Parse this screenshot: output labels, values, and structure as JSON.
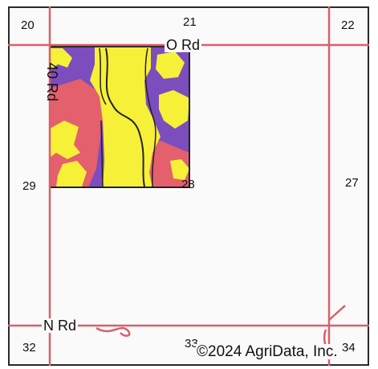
{
  "map": {
    "section_numbers": [
      "20",
      "21",
      "22",
      "29",
      "28",
      "27",
      "32",
      "33",
      "34"
    ],
    "roads": {
      "north": "O Rd",
      "west": "40 Rd",
      "south": "N Rd"
    },
    "copyright": "©2024 AgriData, Inc.",
    "colors": {
      "road_line": "#d9606a",
      "soil_purple": "#7c4dbd",
      "soil_yellow": "#f6f038",
      "soil_red": "#e3606c",
      "boundary": "#222222"
    }
  }
}
